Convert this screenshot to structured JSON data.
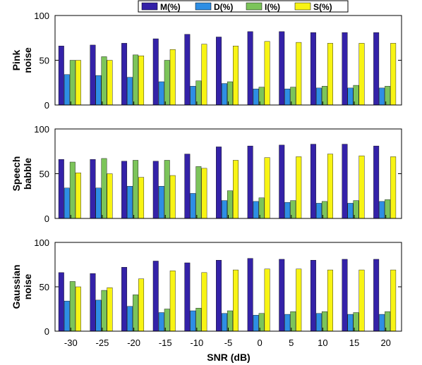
{
  "chart_data": {
    "type": "bar",
    "xlabel": "SNR (dB)",
    "categories": [
      "-30",
      "-25",
      "-20",
      "-15",
      "-10",
      "-5",
      "0",
      "5",
      "10",
      "15",
      "20"
    ],
    "legend": {
      "placement": "top",
      "entries": [
        "M(%)",
        "D(%)",
        "I(%)",
        "S(%)"
      ]
    },
    "colors": {
      "M(%)": "#3422a8",
      "D(%)": "#2e8ee4",
      "I(%)": "#7cc45a",
      "S(%)": "#f8f414"
    },
    "ylim": [
      0,
      100
    ],
    "yticks": [
      "0",
      "50",
      "100"
    ],
    "panels": [
      {
        "ylabel_lines": [
          "Pink",
          "noise"
        ],
        "series": [
          {
            "name": "M(%)",
            "values": [
              66,
              67,
              69,
              74,
              79,
              76,
              82,
              82,
              81,
              81,
              81
            ]
          },
          {
            "name": "D(%)",
            "values": [
              34,
              33,
              31,
              26,
              21,
              24,
              18,
              18,
              19,
              19,
              19
            ]
          },
          {
            "name": "I(%)",
            "values": [
              50,
              54,
              56,
              50,
              27,
              26,
              20,
              20,
              21,
              22,
              21
            ]
          },
          {
            "name": "S(%)",
            "values": [
              50,
              50,
              55,
              62,
              68,
              66,
              71,
              70,
              69,
              69,
              69
            ]
          }
        ]
      },
      {
        "ylabel_lines": [
          "Speech",
          "babble"
        ],
        "series": [
          {
            "name": "M(%)",
            "values": [
              66,
              66,
              64,
              64,
              72,
              80,
              81,
              82,
              83,
              83,
              81
            ]
          },
          {
            "name": "D(%)",
            "values": [
              34,
              34,
              36,
              36,
              28,
              20,
              19,
              18,
              17,
              17,
              19
            ]
          },
          {
            "name": "I(%)",
            "values": [
              63,
              67,
              65,
              65,
              58,
              31,
              23,
              20,
              19,
              20,
              21
            ]
          },
          {
            "name": "S(%)",
            "values": [
              51,
              50,
              46,
              48,
              56,
              65,
              68,
              69,
              72,
              70,
              69
            ]
          }
        ]
      },
      {
        "ylabel_lines": [
          "Gaussian",
          "noise"
        ],
        "series": [
          {
            "name": "M(%)",
            "values": [
              66,
              65,
              72,
              79,
              77,
              80,
              82,
              81,
              80,
              81,
              81
            ]
          },
          {
            "name": "D(%)",
            "values": [
              34,
              35,
              28,
              21,
              23,
              20,
              18,
              19,
              20,
              19,
              19
            ]
          },
          {
            "name": "I(%)",
            "values": [
              56,
              46,
              41,
              25,
              26,
              23,
              20,
              22,
              22,
              21,
              22
            ]
          },
          {
            "name": "S(%)",
            "values": [
              50,
              49,
              59,
              68,
              66,
              69,
              70,
              70,
              69,
              69,
              69
            ]
          }
        ]
      }
    ]
  }
}
